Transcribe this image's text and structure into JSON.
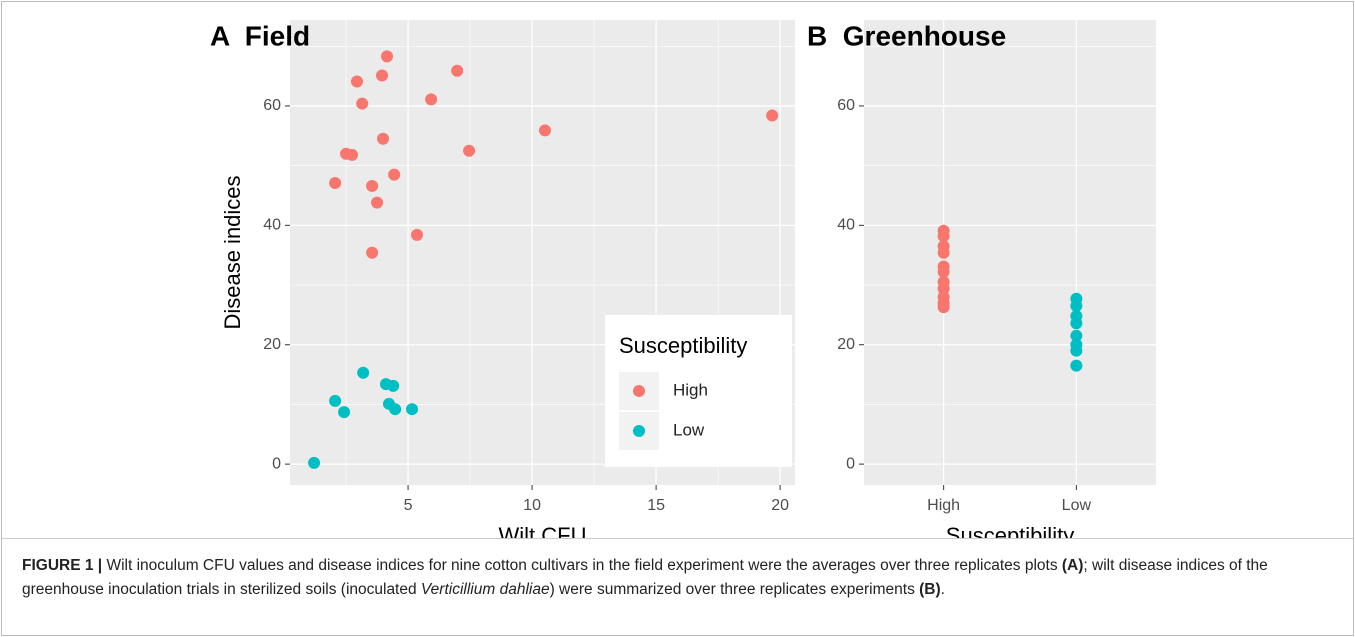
{
  "chart_data": [
    {
      "type": "scatter",
      "title": "A  Field",
      "x_label": "Wilt CFU",
      "y_label": "Disease indices",
      "xlim": [
        0.24,
        20.6
      ],
      "xticks": [
        5,
        10,
        15,
        20
      ],
      "ylim": [
        -3.5,
        74.4
      ],
      "yticks": [
        0,
        20,
        40,
        60
      ],
      "grid": true,
      "legend": {
        "title": "Susceptibility",
        "position": "bottom-right"
      },
      "series": [
        {
          "name": "High",
          "color": "#F8766D",
          "x": [
            4.15,
            2.94,
            3.95,
            6.98,
            3.15,
            5.93,
            10.52,
            19.68,
            3.99,
            7.46,
            2.5,
            2.74,
            2.06,
            3.55,
            4.44,
            3.75,
            5.36,
            3.55
          ],
          "values": [
            68.3,
            64.1,
            65.1,
            65.9,
            60.4,
            61.1,
            55.9,
            58.4,
            54.5,
            52.5,
            52.0,
            51.8,
            47.1,
            46.6,
            48.5,
            43.8,
            38.4,
            35.4
          ]
        },
        {
          "name": "Low",
          "color": "#00BFC4",
          "x": [
            3.19,
            2.06,
            2.42,
            4.11,
            4.4,
            4.23,
            4.48,
            5.16,
            1.21
          ],
          "values": [
            15.3,
            10.6,
            8.7,
            13.4,
            13.1,
            10.1,
            9.2,
            9.2,
            0.2
          ]
        }
      ]
    },
    {
      "type": "strip",
      "title": "B  Greenhouse",
      "x_label": "Susceptibility",
      "ylim": [
        -3.5,
        74.4
      ],
      "yticks": [
        0,
        20,
        40,
        60
      ],
      "grid": true,
      "categories": [
        "High",
        "Low"
      ],
      "colors": [
        "#F8766D",
        "#00BFC4"
      ],
      "values": [
        [
          39.1,
          38.2,
          36.5,
          35.4,
          33.1,
          32.2,
          30.5,
          29.4,
          28.0,
          27.0,
          26.3
        ],
        [
          27.7,
          26.5,
          24.8,
          23.6,
          21.5,
          20.0,
          19.0,
          16.5
        ]
      ]
    }
  ],
  "caption": {
    "parts": [
      {
        "text": "FIGURE 1 |",
        "style": "bold"
      },
      {
        "text": " Wilt inoculum CFU values and disease indices for nine cotton cultivars in the field experiment were the averages over three replicates plots ",
        "style": "normal"
      },
      {
        "text": "(A)",
        "style": "bold"
      },
      {
        "text": "; wilt disease indices of the greenhouse inoculation trials in sterilized soils (inoculated ",
        "style": "normal"
      },
      {
        "text": "Verticillium dahliae",
        "style": "italic"
      },
      {
        "text": ") were summarized over three replicates experiments ",
        "style": "normal"
      },
      {
        "text": "(B)",
        "style": "bold"
      },
      {
        "text": ".",
        "style": "normal"
      }
    ]
  }
}
